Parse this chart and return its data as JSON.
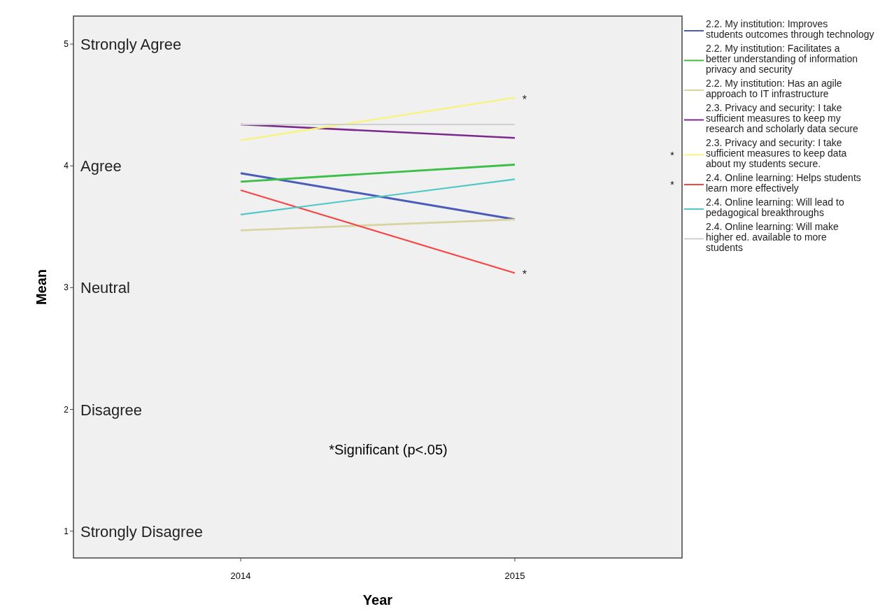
{
  "chart_data": {
    "type": "line",
    "xlabel": "Year",
    "ylabel": "Mean",
    "x": [
      2014,
      2015
    ],
    "xlim": [
      2013.39,
      2015.61
    ],
    "xticks": [
      2014,
      2015
    ],
    "ylim": [
      0.78,
      5.23
    ],
    "yticks": [
      1,
      2,
      3,
      4,
      5
    ],
    "grid": false,
    "legend": "right",
    "line_style": "solid",
    "marker": "none",
    "series": [
      {
        "name": "2.2. My institution: Improves students outcomes through technology",
        "color": "#4a5cb8",
        "values": [
          3.94,
          3.56
        ]
      },
      {
        "name": "2.2. My institution: Facilitates a better understanding of information privacy and security",
        "color": "#3cbf48",
        "values": [
          3.87,
          4.01
        ]
      },
      {
        "name": "2.2. My institution: Has an agile approach to IT infrastructure",
        "color": "#d8d4a0",
        "values": [
          3.47,
          3.56
        ]
      },
      {
        "name": "2.3. Privacy and security: I take sufficient measures to keep my research and scholarly data secure",
        "color": "#7a2a8c",
        "values": [
          4.34,
          4.23
        ]
      },
      {
        "name": "2.3. Privacy and security: I take sufficient measures to keep data about my students secure.",
        "color": "#f8f47a",
        "values": [
          4.21,
          4.56
        ]
      },
      {
        "name": "2.4. Online learning: Helps students learn more effectively",
        "color": "#f84444",
        "values": [
          3.8,
          3.12
        ]
      },
      {
        "name": "2.4. Online learning: Will lead to pedagogical breakthroughs",
        "color": "#50c8c8",
        "values": [
          3.6,
          3.89
        ]
      },
      {
        "name": "2.4. Online learning: Will make higher ed. available to more students",
        "color": "#d0d0d0",
        "values": [
          4.34,
          4.34
        ]
      }
    ],
    "annotations": [
      {
        "text": "*",
        "x": 2015,
        "y": 4.56
      },
      {
        "text": "*",
        "x": 2015,
        "y": 3.12
      },
      "Strongly Agree",
      "Agree",
      "Neutral",
      "Disagree",
      "Strongly Disagree",
      "*Significant (p<.05)"
    ]
  }
}
